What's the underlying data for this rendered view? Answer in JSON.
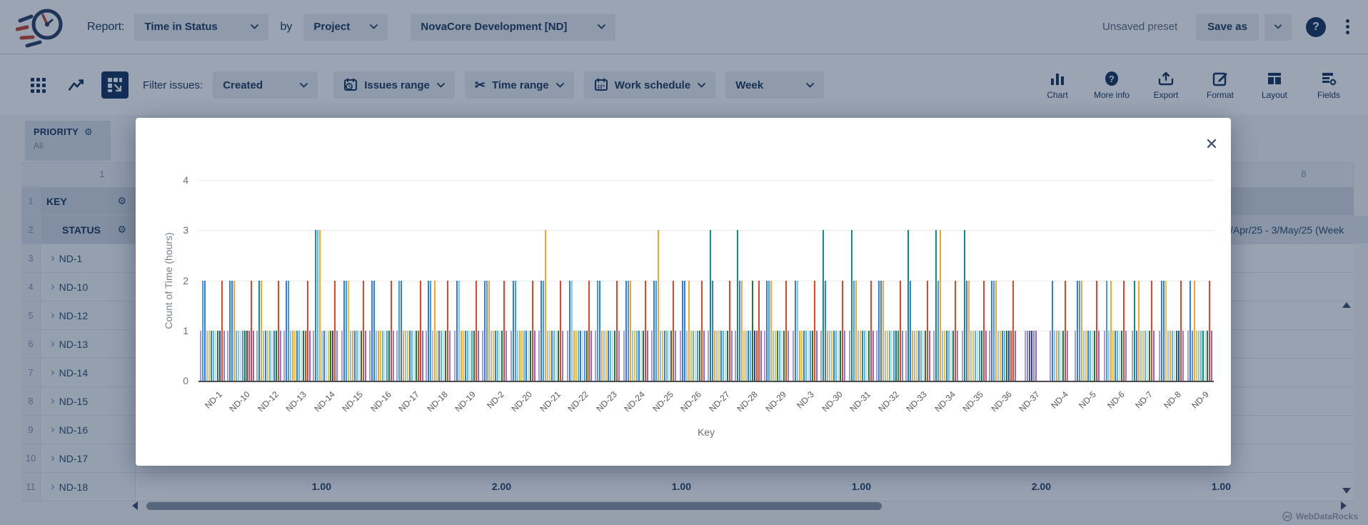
{
  "header": {
    "report_label": "Report:",
    "report_type": "Time in Status",
    "by_label": "by",
    "group_by": "Project",
    "project": "NovaCore Development [ND]",
    "preset_status": "Unsaved preset",
    "save_as": "Save as"
  },
  "toolbar": {
    "filter_label": "Filter issues:",
    "filter_value": "Created",
    "issues_range": "Issues range",
    "time_range": "Time range",
    "work_schedule": "Work schedule",
    "week_value": "Week",
    "tools": [
      {
        "id": "chart",
        "label": "Chart"
      },
      {
        "id": "more-info",
        "label": "More info"
      },
      {
        "id": "export",
        "label": "Export"
      },
      {
        "id": "format",
        "label": "Format"
      },
      {
        "id": "layout",
        "label": "Layout"
      },
      {
        "id": "fields",
        "label": "Fields"
      }
    ]
  },
  "pivot": {
    "priority_label": "PRIORITY",
    "priority_value": "All",
    "gear_glyph": "⚙",
    "col_numbers": [
      "1",
      "8"
    ],
    "rows": [
      {
        "num": "1",
        "label": "KEY",
        "kind": "colheader",
        "gear": true,
        "stub": "T"
      },
      {
        "num": "2",
        "label": "STATUS",
        "kind": "colheader2",
        "gear": true,
        "stub": "1",
        "right_text": "/Apr/25 - 3/May/25 (Week"
      },
      {
        "num": "3",
        "label": "ND-1",
        "kind": "key"
      },
      {
        "num": "4",
        "label": "ND-10",
        "kind": "key"
      },
      {
        "num": "5",
        "label": "ND-12",
        "kind": "key"
      },
      {
        "num": "6",
        "label": "ND-13",
        "kind": "key"
      },
      {
        "num": "7",
        "label": "ND-14",
        "kind": "key"
      },
      {
        "num": "8",
        "label": "ND-15",
        "kind": "key"
      },
      {
        "num": "9",
        "label": "ND-16",
        "kind": "key"
      },
      {
        "num": "10",
        "label": "ND-17",
        "kind": "key"
      },
      {
        "num": "11",
        "label": "ND-18",
        "kind": "key",
        "values": [
          "1.00",
          "2.00",
          "1.00",
          "1.00",
          "2.00",
          "1.00"
        ]
      }
    ],
    "branding": "WebDataRocks"
  },
  "modal": {
    "close_glyph": "✕"
  },
  "chart_data": {
    "type": "bar",
    "title": "",
    "xlabel": "Key",
    "ylabel": "Count of Time (hours)",
    "ylim": [
      0,
      4
    ],
    "yticks": [
      0,
      1,
      2,
      3,
      4
    ],
    "grid": "horizontal",
    "legend": "none",
    "palette": {
      "L": "#a79bd9",
      "B": "#2f7ded",
      "S": "#3f9ee8",
      "b": "#8fc3f0",
      "P": "#c7dcf4",
      "C": "#52c1d8",
      "O": "#f9a42c",
      "A": "#f5c02a",
      "T": "#0d8e88",
      "G": "#1f7a33",
      "N": "#2b3f9e",
      "U": "#3b4ed8",
      "R": "#e54427",
      "V": "#8d7fe0",
      "M": "#a05fd0"
    },
    "groups": [
      {
        "key": "ND-1",
        "bars": "L1 S2 B2 b1 A1 B1 C1 P1 G1 N1 R2 V1"
      },
      {
        "key": "ND-10",
        "bars": "L1 B2 B2 O2 C1 b1 P1 S1 G1 N1 R1 R2 M1"
      },
      {
        "key": "ND-12",
        "bars": "L1 T2 O2 b1 B1 A1 C1 P1 B1 G1 R2 V1"
      },
      {
        "key": "ND-13",
        "bars": "L1 B2 S2 b1 O1 A1 B1 C1 P1 G1 R1 R2 M1"
      },
      {
        "key": "ND-14",
        "bars": "L1 B3 C3 O3 b1 B1 P1 A1 G1 N1 R2 V1"
      },
      {
        "key": "ND-15",
        "bars": "L1 B2 S2 A2 b1 O1 B1 C1 P1 G1 R2 M1"
      },
      {
        "key": "ND-16",
        "bars": "L1 B2 B2 b1 O1 A1 C1 P1 S1 G1 R2 V1"
      },
      {
        "key": "ND-17",
        "bars": "L1 S2 B2 O1 b1 A1 B1 C1 P1 G1 R1 R2 M1"
      },
      {
        "key": "ND-18",
        "bars": "L1 B2 S2 b1 O2 A1 B1 C1 P1 G1 R2 V1"
      },
      {
        "key": "ND-19",
        "bars": "L1 B2 b2 O1 A1 B1 C1 P1 S1 G1 R2 M1"
      },
      {
        "key": "ND-2",
        "bars": "L1 B2 S2 O2 b1 A1 B1 C1 P1 G1 R2 V1"
      },
      {
        "key": "ND-20",
        "bars": "L1 B2 S2 b1 O1 A1 C1 B1 P1 G1 R2 M1"
      },
      {
        "key": "ND-21",
        "bars": "L1 B2 S2 O3 b1 A1 B1 C1 P1 G1 R2 V1"
      },
      {
        "key": "ND-22",
        "bars": "L1 B2 b2 O1 A1 C1 B1 P1 S1 G1 R2 M1"
      },
      {
        "key": "ND-23",
        "bars": "L1 S2 B2 O1 b1 A1 B1 C1 P1 G1 R2 V1"
      },
      {
        "key": "ND-24",
        "bars": "L1 B2 S2 O2 b1 A1 C1 B1 P1 G1 R2 M1"
      },
      {
        "key": "ND-25",
        "bars": "L1 B2 S2 O3 b1 A1 B1 C1 P1 G1 R2 V1"
      },
      {
        "key": "ND-26",
        "bars": "L1 B2 B2 b1 O2 A1 C1 P1 S1 G1 R2 M1"
      },
      {
        "key": "ND-27",
        "bars": "L1 T3 B2 O1 b1 A1 B1 C1 P1 G1 R2 V1"
      },
      {
        "key": "ND-28",
        "bars": "L1 T3 B2 O2 A1 b1 B1 C1 G2 N1 R1 R2 M1"
      },
      {
        "key": "ND-29",
        "bars": "L1 B2 S2 O2 b1 A1 T1 C1 P1 G1 R2 V1"
      },
      {
        "key": "ND-3",
        "bars": "L1 B2 b2 O1 A1 B1 C1 P1 S1 G1 R2 M1"
      },
      {
        "key": "ND-30",
        "bars": "L1 T3 B2 O1 b1 A1 B1 C1 P1 G1 R2 V1"
      },
      {
        "key": "ND-31",
        "bars": "L1 T3 S2 O2 b1 A1 B1 C1 P1 G1 R2 M1"
      },
      {
        "key": "ND-32",
        "bars": "L1 B2 B2 O2 b1 A1 C1 P1 S1 G1 T1 R2 V1"
      },
      {
        "key": "ND-33",
        "bars": "L1 T3 B2 O1 b1 A1 B1 C1 P1 G1 R2 M1"
      },
      {
        "key": "ND-34",
        "bars": "L1 T3 S2 O3 b1 A1 B1 C1 P1 G1 R2 V1"
      },
      {
        "key": "ND-35",
        "bars": "L1 T3 B2 O2 b1 A1 C1 P1 S1 G1 R2 M1"
      },
      {
        "key": "ND-36",
        "bars": "L1 B2 S2 O2 b1 A1 B1 C1 G1 N1 R1 R2 M1"
      },
      {
        "key": "ND-37",
        "bars": "L1 V1 U1 N1 V1 M1"
      },
      {
        "key": "ND-4",
        "bars": "L1 B2 b1 O1 C1 P1 G1 R2 V1"
      },
      {
        "key": "ND-5",
        "bars": "L1 B2 S2 O2 b1 A1 B1 C1 P1 G1 R2 M1"
      },
      {
        "key": "ND-6",
        "bars": "L1 S2 b1 O2 A1 B1 C1 P1 G1 R2 V1"
      },
      {
        "key": "ND-7",
        "bars": "L1 T2 B1 O2 b1 A1 C1 P1 G1 R2 M1"
      },
      {
        "key": "ND-8",
        "bars": "L1 B2 B2 A2 b1 O1 C1 P1 G1 N1 R2 V1"
      },
      {
        "key": "ND-9",
        "bars": "L1 B2 S1 O2 A1 b1 C1 T1 P1 G1 R2 M1"
      }
    ]
  }
}
